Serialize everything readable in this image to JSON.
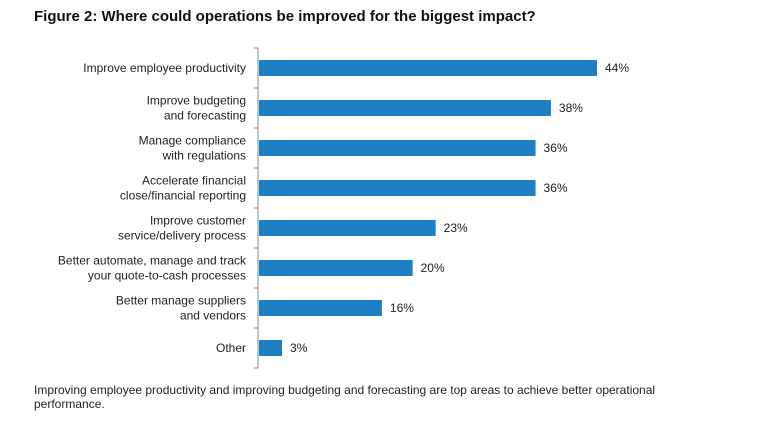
{
  "title": "Figure 2: Where could operations be improved for the biggest impact?",
  "caption": "Improving employee productivity and improving budgeting and forecasting are top areas to achieve better operational performance.",
  "colors": {
    "bar": "#1f7fc4",
    "axis": "#8a8a8a"
  },
  "chart_data": {
    "type": "bar",
    "orientation": "horizontal",
    "categories": [
      [
        "Improve employee productivity"
      ],
      [
        "Improve budgeting",
        "and forecasting"
      ],
      [
        "Manage compliance",
        "with regulations"
      ],
      [
        "Accelerate financial",
        "close/financial reporting"
      ],
      [
        "Improve customer",
        "service/delivery process"
      ],
      [
        "Better automate, manage and track",
        "your quote-to-cash processes"
      ],
      [
        "Better manage suppliers",
        "and vendors"
      ],
      [
        "Other"
      ]
    ],
    "values": [
      44,
      38,
      36,
      36,
      23,
      20,
      16,
      3
    ],
    "value_labels": [
      "44%",
      "38%",
      "36%",
      "36%",
      "23%",
      "20%",
      "16%",
      "3%"
    ],
    "unit": "%",
    "xlim": [
      0,
      44
    ],
    "grid": false,
    "legend": "none"
  }
}
